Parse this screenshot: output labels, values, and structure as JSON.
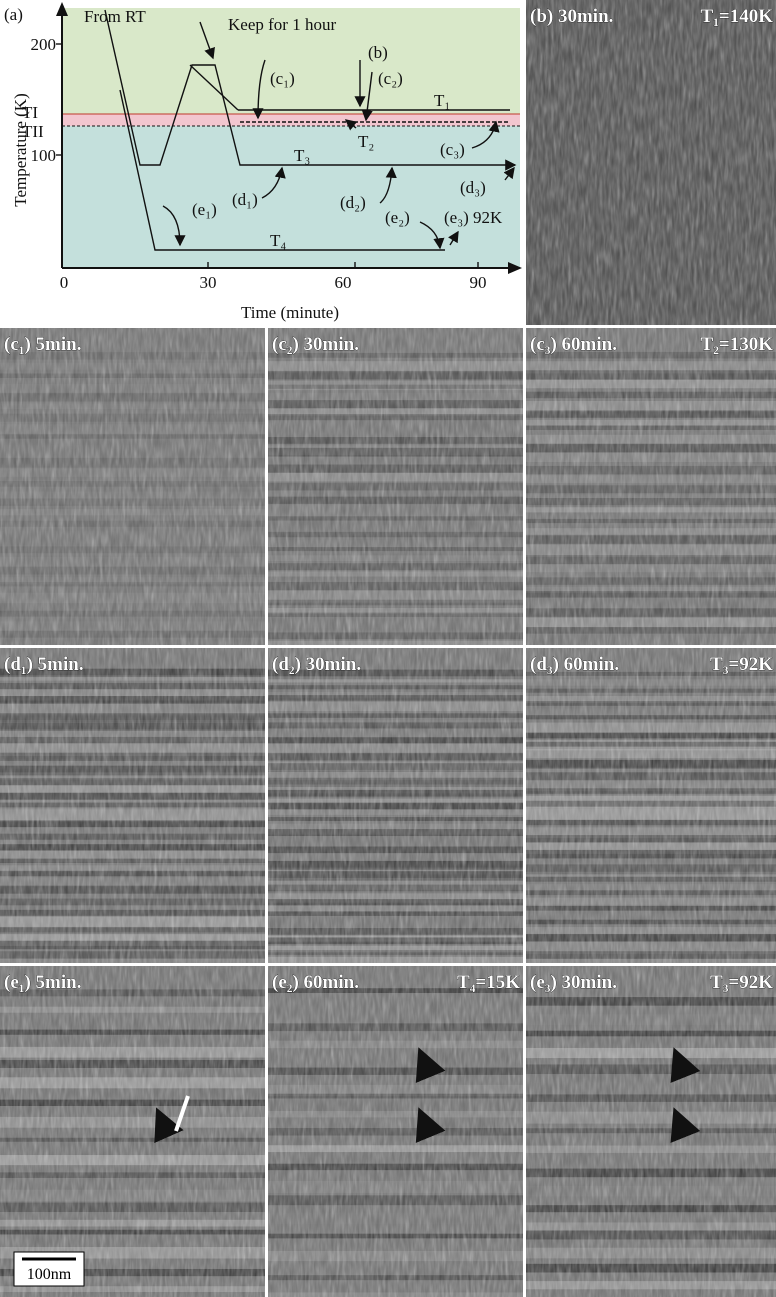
{
  "panel_a": {
    "label": "(a)",
    "y_axis_label": "Temperature (K)",
    "x_axis_label": "Time (minute)",
    "yticks": [
      "200",
      "100"
    ],
    "xticks": [
      "0",
      "30",
      "60",
      "90"
    ],
    "level_labels": [
      "TI",
      "TII"
    ],
    "annotations": {
      "from_rt": "From RT",
      "keep": "Keep for 1 hour",
      "b": "(b)",
      "c1": "(c₁)",
      "c2": "(c₂)",
      "c3": "(c₃)",
      "d1": "(d₁)",
      "d2": "(d₂)",
      "d3": "(d₃)",
      "e1": "(e₁)",
      "e2": "(e₂)",
      "e3": "(e₃) 92K",
      "t1": "T₁",
      "t2": "T₂",
      "t3": "T₃",
      "t4": "T₄"
    }
  },
  "panels": [
    {
      "label": "(b) 30min.",
      "note": "T₁=140K"
    },
    {
      "label": "(c₁) 5min."
    },
    {
      "label": "(c₂) 30min."
    },
    {
      "label": "(c₃) 60min.",
      "note": "T₂=130K"
    },
    {
      "label": "(d₁) 5min."
    },
    {
      "label": "(d₂) 30min."
    },
    {
      "label": "(d₃) 60min.",
      "note": "T₃=92K"
    },
    {
      "label": "(e₁) 5min.",
      "scale_bar": "100nm"
    },
    {
      "label": "(e₂) 60min.",
      "note": "T₄=15K"
    },
    {
      "label": "(e₃) 30min.",
      "note": "T₃=92K"
    }
  ]
}
